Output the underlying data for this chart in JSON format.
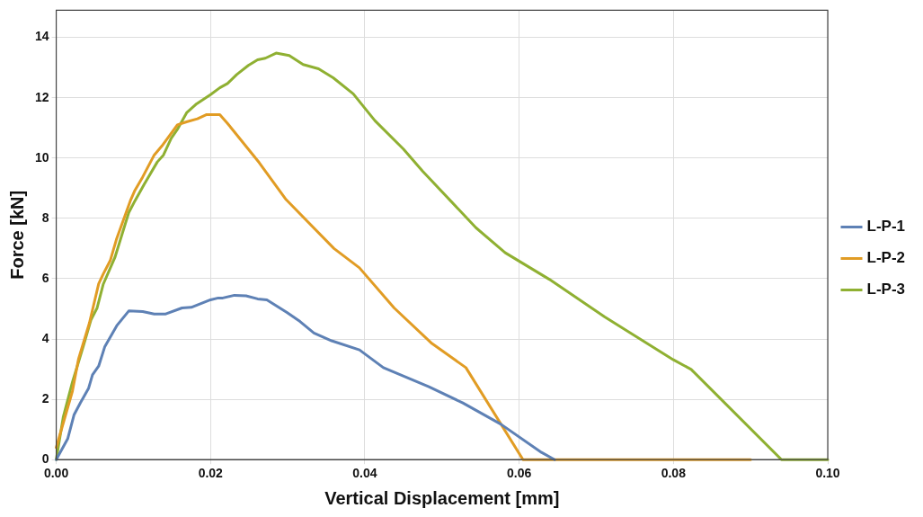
{
  "chart_data": {
    "type": "line",
    "xlabel": "Vertical Displacement [mm]",
    "ylabel": "Force [kN]",
    "xlim": [
      0,
      0.1
    ],
    "xticks": [
      {
        "value": 0,
        "label": "0.00"
      },
      {
        "value": 0.02,
        "label": "0.02"
      },
      {
        "value": 0.04,
        "label": "0.04"
      },
      {
        "value": 0.06,
        "label": "0.06"
      },
      {
        "value": 0.08,
        "label": "0.08"
      },
      {
        "value": 0.1,
        "label": "0.10"
      }
    ],
    "ylim": [
      0,
      14.9
    ],
    "yticks": [
      0,
      2,
      4,
      6,
      8,
      10,
      12,
      14
    ],
    "grid": true,
    "legend": "right",
    "marker": "none",
    "line_style": "solid",
    "series": [
      {
        "name": "L-P-1",
        "color": "#5e81b5",
        "x": [
          0,
          0.0015,
          0.0023,
          0.0031,
          0.0042,
          0.0047,
          0.0055,
          0.0063,
          0.0079,
          0.0094,
          0.0112,
          0.0127,
          0.0142,
          0.0163,
          0.0175,
          0.02,
          0.021,
          0.0216,
          0.0231,
          0.0246,
          0.0261,
          0.0273,
          0.0299,
          0.0316,
          0.0334,
          0.0357,
          0.0393,
          0.0424,
          0.0483,
          0.0527,
          0.0576,
          0.0629,
          0.0646
        ],
        "values": [
          0,
          0.7,
          1.48,
          1.87,
          2.37,
          2.81,
          3.1,
          3.75,
          4.46,
          4.93,
          4.91,
          4.83,
          4.83,
          5.03,
          5.05,
          5.3,
          5.36,
          5.36,
          5.45,
          5.43,
          5.33,
          5.3,
          4.88,
          4.58,
          4.2,
          3.94,
          3.64,
          3.05,
          2.42,
          1.88,
          1.18,
          0.24,
          0
        ]
      },
      {
        "name": "L-P-2",
        "color": "#e19c24",
        "x": [
          0,
          0.0021,
          0.0029,
          0.0043,
          0.0055,
          0.0061,
          0.007,
          0.0078,
          0.0096,
          0.0102,
          0.0112,
          0.0127,
          0.0137,
          0.0157,
          0.0169,
          0.0183,
          0.0195,
          0.0212,
          0.0222,
          0.0263,
          0.0298,
          0.036,
          0.0393,
          0.0438,
          0.0487,
          0.0531,
          0.0605,
          0.09
        ],
        "values": [
          0.4,
          2.27,
          3.35,
          4.53,
          5.83,
          6.16,
          6.6,
          7.3,
          8.58,
          8.93,
          9.37,
          10.1,
          10.4,
          11.1,
          11.2,
          11.3,
          11.44,
          11.44,
          11.15,
          9.85,
          8.62,
          7.0,
          6.36,
          5.03,
          3.85,
          3.05,
          0,
          0
        ]
      },
      {
        "name": "L-P-3",
        "color": "#8fb032",
        "x": [
          0,
          0.0009,
          0.0021,
          0.0035,
          0.0045,
          0.0053,
          0.0061,
          0.0076,
          0.0094,
          0.0102,
          0.0114,
          0.0131,
          0.0139,
          0.0149,
          0.0157,
          0.0169,
          0.0182,
          0.02,
          0.0212,
          0.0222,
          0.0234,
          0.0249,
          0.0261,
          0.0271,
          0.0285,
          0.0302,
          0.032,
          0.034,
          0.0359,
          0.0385,
          0.0413,
          0.045,
          0.0475,
          0.0544,
          0.0582,
          0.0639,
          0.0711,
          0.08,
          0.0823,
          0.094,
          0.1
        ],
        "values": [
          0,
          1.4,
          2.57,
          3.75,
          4.63,
          5.03,
          5.82,
          6.7,
          8.19,
          8.58,
          9.13,
          9.87,
          10.1,
          10.65,
          10.95,
          11.5,
          11.8,
          12.1,
          12.33,
          12.47,
          12.77,
          13.07,
          13.26,
          13.31,
          13.48,
          13.4,
          13.1,
          12.96,
          12.66,
          12.13,
          11.24,
          10.3,
          9.56,
          7.69,
          6.86,
          5.98,
          4.73,
          3.31,
          2.99,
          0,
          0
        ]
      }
    ]
  }
}
